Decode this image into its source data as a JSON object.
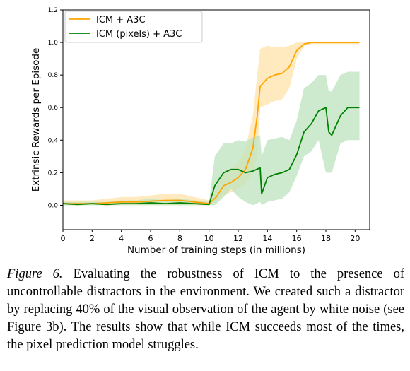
{
  "chart_data": {
    "type": "line",
    "xlabel": "Number of training steps (in millions)",
    "ylabel": "Extrinsic Rewards per Episode",
    "xlim": [
      0,
      21
    ],
    "ylim": [
      -0.15,
      1.2
    ],
    "xticks": [
      0,
      2,
      4,
      6,
      8,
      10,
      12,
      14,
      16,
      18,
      20
    ],
    "yticks": [
      0.0,
      0.2,
      0.4,
      0.6,
      0.8,
      1.0,
      1.2
    ],
    "xtick_labels": [
      "0",
      "2",
      "4",
      "6",
      "8",
      "10",
      "12",
      "14",
      "16",
      "18",
      "20"
    ],
    "ytick_labels": [
      "0.0",
      "0.2",
      "0.4",
      "0.6",
      "0.8",
      "1.0",
      "1.2"
    ],
    "grid": false,
    "legend_position": "top-left",
    "series": [
      {
        "name": "ICM + A3C",
        "color": "#FFA500",
        "band_color": "#FFE2A8",
        "x": [
          0,
          1,
          2,
          3,
          4,
          5,
          6,
          7,
          8,
          9,
          10,
          10.5,
          11,
          11.5,
          12,
          12.5,
          13,
          13.3,
          13.5,
          14,
          14.5,
          15,
          15.5,
          16,
          16.5,
          17,
          18,
          19,
          20.3
        ],
        "y": [
          0.01,
          0.01,
          0.01,
          0.015,
          0.02,
          0.02,
          0.025,
          0.03,
          0.03,
          0.02,
          0.01,
          0.05,
          0.12,
          0.14,
          0.17,
          0.22,
          0.35,
          0.55,
          0.73,
          0.78,
          0.8,
          0.81,
          0.85,
          0.95,
          0.99,
          1.0,
          1.0,
          1.0,
          1.0
        ],
        "lower": [
          0.0,
          0.0,
          0.0,
          0.0,
          0.0,
          0.0,
          0.0,
          0.0,
          0.0,
          0.0,
          0.0,
          0.02,
          0.06,
          0.08,
          0.1,
          0.13,
          0.2,
          0.3,
          0.6,
          0.62,
          0.64,
          0.65,
          0.72,
          0.9,
          0.98,
          0.99,
          0.99,
          0.99,
          0.99
        ],
        "upper": [
          0.03,
          0.03,
          0.03,
          0.04,
          0.05,
          0.05,
          0.06,
          0.07,
          0.07,
          0.05,
          0.03,
          0.1,
          0.2,
          0.22,
          0.26,
          0.35,
          0.55,
          0.8,
          0.96,
          0.98,
          0.97,
          0.97,
          0.98,
          1.0,
          1.0,
          1.0,
          1.0,
          1.0,
          1.0
        ]
      },
      {
        "name": "ICM (pixels) + A3C",
        "color": "#008000",
        "band_color": "#BDE3BD",
        "x": [
          0,
          1,
          2,
          3,
          4,
          5,
          6,
          7,
          8,
          9,
          10,
          10.4,
          11,
          11.5,
          12,
          12.5,
          13,
          13.5,
          13.6,
          14,
          14.5,
          15,
          15.5,
          16,
          16.5,
          17,
          17.5,
          18,
          18.2,
          18.4,
          19,
          19.5,
          20.3
        ],
        "y": [
          0.01,
          0.005,
          0.01,
          0.005,
          0.01,
          0.01,
          0.015,
          0.01,
          0.015,
          0.01,
          0.005,
          0.12,
          0.2,
          0.22,
          0.22,
          0.2,
          0.21,
          0.23,
          0.07,
          0.17,
          0.19,
          0.2,
          0.22,
          0.31,
          0.45,
          0.5,
          0.58,
          0.6,
          0.45,
          0.43,
          0.55,
          0.6,
          0.6
        ],
        "lower": [
          0.0,
          0.0,
          0.0,
          0.0,
          0.0,
          0.0,
          0.0,
          0.0,
          0.0,
          0.0,
          0.0,
          0.0,
          0.05,
          0.1,
          0.05,
          0.02,
          0.0,
          0.02,
          0.0,
          0.02,
          0.03,
          0.04,
          0.08,
          0.18,
          0.3,
          0.33,
          0.4,
          0.2,
          0.2,
          0.2,
          0.38,
          0.4,
          0.4
        ],
        "upper": [
          0.02,
          0.02,
          0.02,
          0.02,
          0.03,
          0.03,
          0.04,
          0.03,
          0.04,
          0.03,
          0.02,
          0.3,
          0.38,
          0.38,
          0.4,
          0.39,
          0.42,
          0.43,
          0.3,
          0.4,
          0.41,
          0.42,
          0.4,
          0.52,
          0.72,
          0.75,
          0.8,
          0.8,
          0.7,
          0.7,
          0.8,
          0.82,
          0.82
        ]
      }
    ]
  },
  "caption": {
    "label": "Figure 6.",
    "text": " Evaluating the robustness of ICM to the presence of uncontrollable distractors in the environment.  We created such a distractor by replacing 40% of the visual observation of the agent by white noise (see Figure 3b). The results show that while ICM succeeds most of the times, the pixel prediction model struggles."
  }
}
